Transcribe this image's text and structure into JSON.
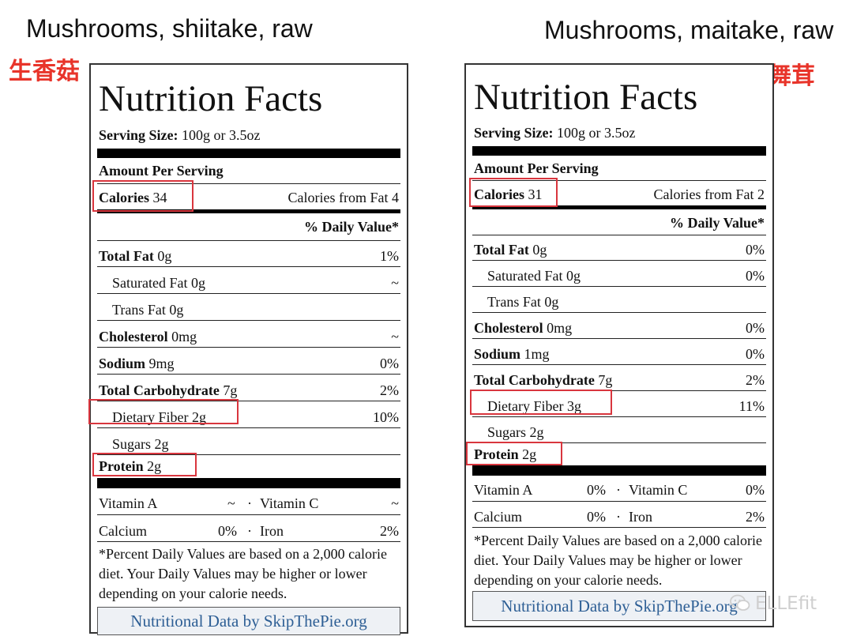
{
  "left": {
    "heading": "Mushrooms, shiitake, raw",
    "chinese": "生香菇",
    "title": "Nutrition Facts",
    "serving_label": "Serving Size:",
    "serving_value": "100g or 3.5oz",
    "amount_label": "Amount Per Serving",
    "calories_label": "Calories",
    "calories_value": "34",
    "calories_from_fat": "Calories from Fat 4",
    "daily_value_header": "% Daily Value*",
    "nutrients": [
      {
        "label": "Total Fat",
        "amount": "0g",
        "dv": "1%"
      },
      {
        "label": "Saturated Fat",
        "amount": "0g",
        "dv": "~"
      },
      {
        "label": "Trans Fat",
        "amount": "0g",
        "dv": ""
      },
      {
        "label": "Cholesterol",
        "amount": "0mg",
        "dv": "~"
      },
      {
        "label": "Sodium",
        "amount": "9mg",
        "dv": "0%"
      },
      {
        "label": "Total Carbohydrate",
        "amount": "7g",
        "dv": "2%"
      },
      {
        "label": "Dietary Fiber",
        "amount": "2g",
        "dv": "10%"
      },
      {
        "label": "Sugars",
        "amount": "2g",
        "dv": ""
      },
      {
        "label": "Protein",
        "amount": "2g",
        "dv": ""
      }
    ],
    "vitamins": [
      {
        "name1": "Vitamin A",
        "val1": "~",
        "name2": "Vitamin C",
        "val2": "~"
      },
      {
        "name1": "Calcium",
        "val1": "0%",
        "name2": "Iron",
        "val2": "2%"
      }
    ],
    "footnote": "*Percent Daily Values are based on a 2,000 calorie diet. Your Daily Values may be higher or lower depending on your calorie needs.",
    "credit": "Nutritional Data by SkipThePie.org"
  },
  "right": {
    "heading": "Mushrooms, maitake, raw",
    "chinese": "生舞茸",
    "title": "Nutrition Facts",
    "serving_label": "Serving Size:",
    "serving_value": "100g or 3.5oz",
    "amount_label": "Amount Per Serving",
    "calories_label": "Calories",
    "calories_value": "31",
    "calories_from_fat": "Calories from Fat 2",
    "daily_value_header": "% Daily Value*",
    "nutrients": [
      {
        "label": "Total Fat",
        "amount": "0g",
        "dv": "0%"
      },
      {
        "label": "Saturated Fat",
        "amount": "0g",
        "dv": "0%"
      },
      {
        "label": "Trans Fat",
        "amount": "0g",
        "dv": ""
      },
      {
        "label": "Cholesterol",
        "amount": "0mg",
        "dv": "0%"
      },
      {
        "label": "Sodium",
        "amount": "1mg",
        "dv": "0%"
      },
      {
        "label": "Total Carbohydrate",
        "amount": "7g",
        "dv": "2%"
      },
      {
        "label": "Dietary Fiber",
        "amount": "3g",
        "dv": "11%"
      },
      {
        "label": "Sugars",
        "amount": "2g",
        "dv": ""
      },
      {
        "label": "Protein",
        "amount": "2g",
        "dv": ""
      }
    ],
    "vitamins": [
      {
        "name1": "Vitamin A",
        "val1": "0%",
        "name2": "Vitamin C",
        "val2": "0%"
      },
      {
        "name1": "Calcium",
        "val1": "0%",
        "name2": "Iron",
        "val2": "2%"
      }
    ],
    "footnote": "*Percent Daily Values are based on a 2,000 calorie diet. Your Daily Values may be higher or lower depending on your calorie needs.",
    "credit": "Nutritional Data by SkipThePie.org"
  },
  "watermark": {
    "text": "ELLEfit",
    "icon": "wechat-icon"
  },
  "colors": {
    "highlight": "#d9363e",
    "chinese_text": "#e8342a",
    "credit_text": "#2e5f95"
  }
}
